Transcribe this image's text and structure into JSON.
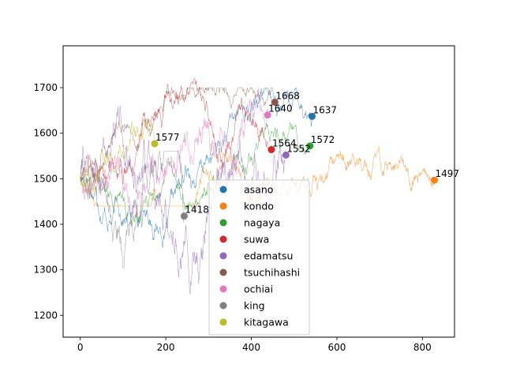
{
  "chart_data": {
    "type": "line",
    "title": "",
    "xlabel": "",
    "ylabel": "",
    "xlim": [
      -40,
      875
    ],
    "ylim": [
      1152,
      1792
    ],
    "xticks": [
      0,
      200,
      400,
      600,
      800
    ],
    "yticks": [
      1200,
      1300,
      1400,
      1500,
      1600,
      1700
    ],
    "grid": false,
    "legend_position": "lower center",
    "series": [
      {
        "name": "asano",
        "color": "#1f77b4",
        "length": 542,
        "end_value": 1637,
        "min": 1220,
        "max": 1700
      },
      {
        "name": "kondo",
        "color": "#ff7f0e",
        "length": 828,
        "end_value": 1497,
        "min": 1440,
        "max": 1700
      },
      {
        "name": "nagaya",
        "color": "#2ca02c",
        "length": 537,
        "end_value": 1572,
        "min": 1365,
        "max": 1650
      },
      {
        "name": "suwa",
        "color": "#d62728",
        "length": 447,
        "end_value": 1564,
        "min": 1420,
        "max": 1720
      },
      {
        "name": "edamatsu",
        "color": "#9467bd",
        "length": 481,
        "end_value": 1552,
        "min": 1210,
        "max": 1660
      },
      {
        "name": "tsuchihashi",
        "color": "#8c564b",
        "length": 455,
        "end_value": 1668,
        "min": 1430,
        "max": 1700
      },
      {
        "name": "ochiai",
        "color": "#e377c2",
        "length": 438,
        "end_value": 1640,
        "min": 1260,
        "max": 1765
      },
      {
        "name": "king",
        "color": "#7f7f7f",
        "length": 243,
        "end_value": 1418,
        "min": 1185,
        "max": 1560
      },
      {
        "name": "kitagawa",
        "color": "#bcbd22",
        "length": 174,
        "end_value": 1577,
        "min": 1470,
        "max": 1715
      }
    ]
  }
}
